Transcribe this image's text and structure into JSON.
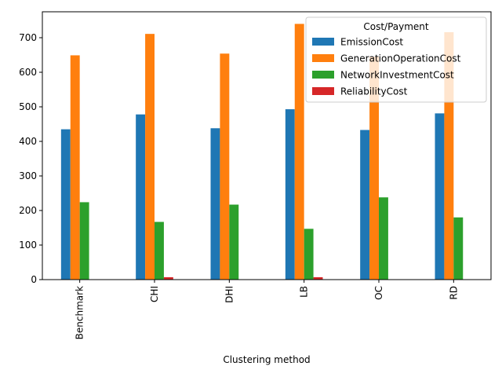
{
  "chart_data": {
    "type": "bar",
    "title": "",
    "xlabel": "Clustering method",
    "ylabel": "",
    "categories": [
      "Benchmark",
      "CHI",
      "DHI",
      "LB",
      "OC",
      "RD"
    ],
    "ylim": [
      0,
      775
    ],
    "yticks": [
      0,
      100,
      200,
      300,
      400,
      500,
      600,
      700
    ],
    "legend": {
      "title": "Cost/Payment",
      "placement": "top-right"
    },
    "series": [
      {
        "name": "EmissionCost",
        "color": "#1f77b4",
        "values": [
          435,
          478,
          438,
          493,
          433,
          481
        ]
      },
      {
        "name": "GenerationOperationCost",
        "color": "#ff7f0e",
        "values": [
          649,
          711,
          654,
          740,
          645,
          716
        ]
      },
      {
        "name": "NetworkInvestmentCost",
        "color": "#2ca02c",
        "values": [
          224,
          167,
          217,
          147,
          238,
          180
        ]
      },
      {
        "name": "ReliabilityCost",
        "color": "#d62728",
        "values": [
          0,
          7,
          0,
          7,
          0,
          0
        ]
      }
    ]
  }
}
